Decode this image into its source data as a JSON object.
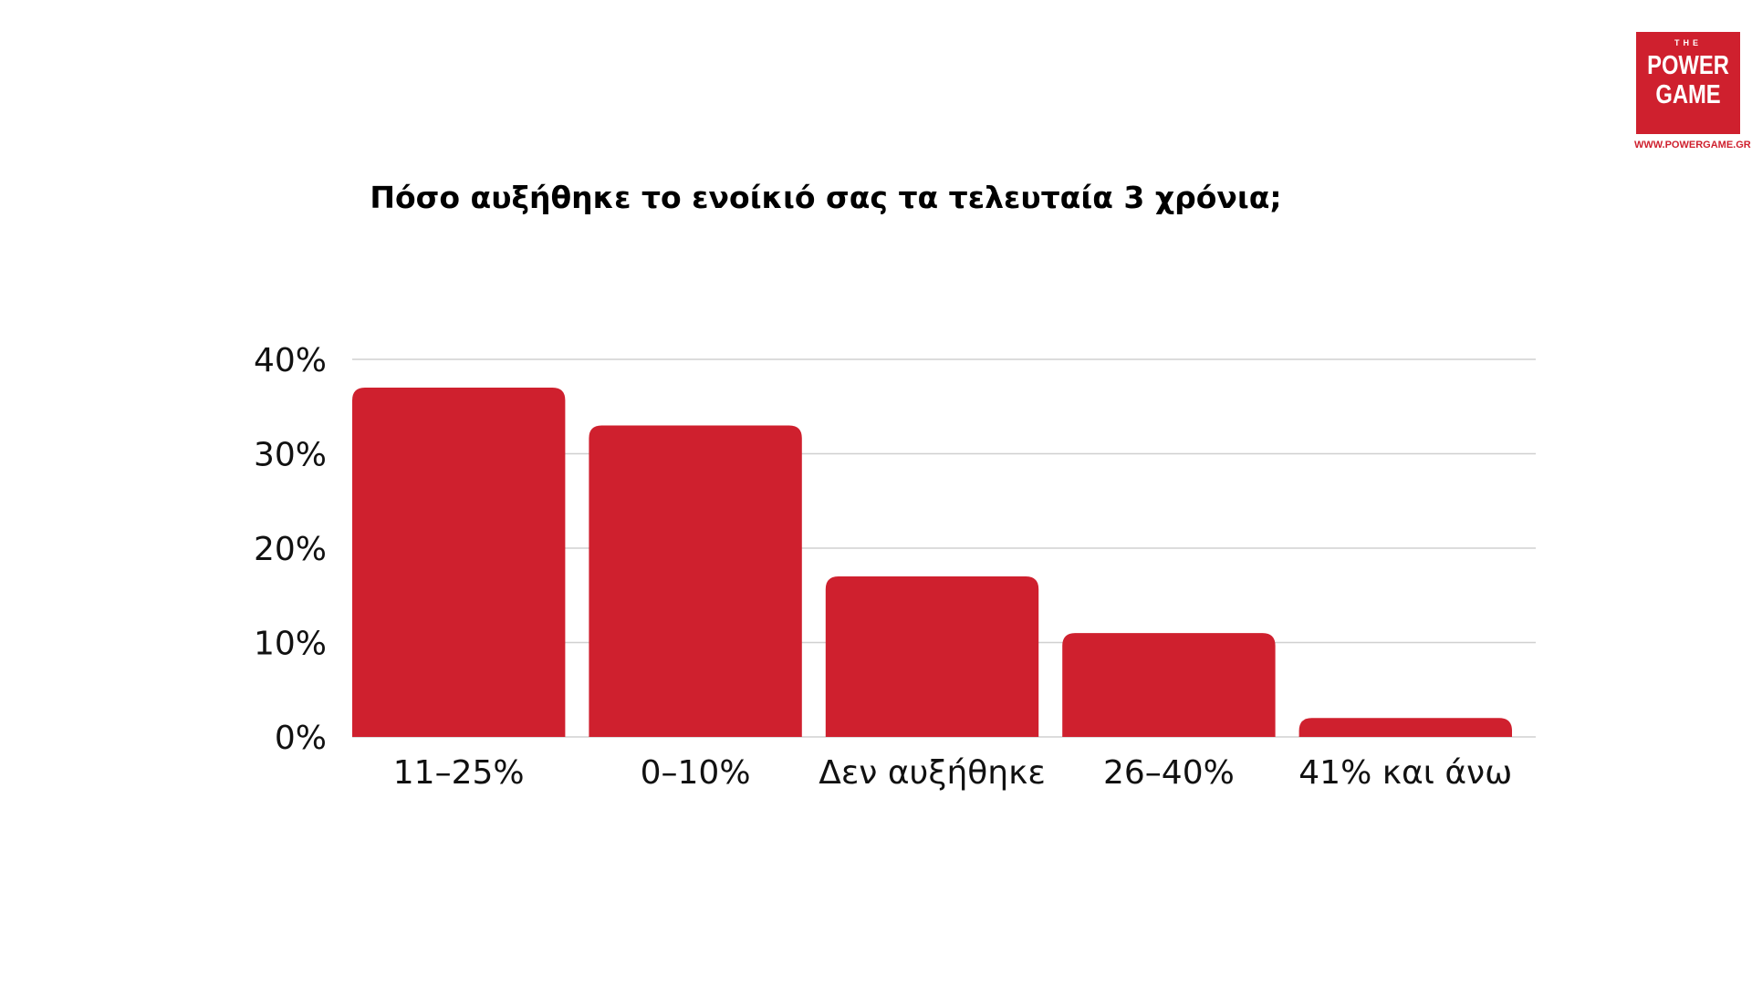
{
  "logo": {
    "the": "THE",
    "power": "POWER",
    "game": "GAME",
    "url": "WWW.POWERGAME.GR",
    "color": "#cf202e"
  },
  "chart_data": {
    "type": "bar",
    "title": "Πόσο αυξήθηκε το ενοίκιό σας τα τελευταία 3 χρόνια;",
    "categories": [
      "11–25%",
      "0–10%",
      "Δεν αυξήθηκε",
      "26–40%",
      "41% και άνω"
    ],
    "values": [
      37,
      33,
      17,
      11,
      2
    ],
    "value_unit": "%",
    "ylim": [
      0,
      40
    ],
    "yticks": [
      0,
      10,
      20,
      30,
      40
    ],
    "ytick_labels": [
      "0%",
      "10%",
      "20%",
      "30%",
      "40%"
    ],
    "grid": true,
    "legend": "none",
    "bar_color": "#cf202e",
    "grid_color": "#d0d0d0"
  }
}
